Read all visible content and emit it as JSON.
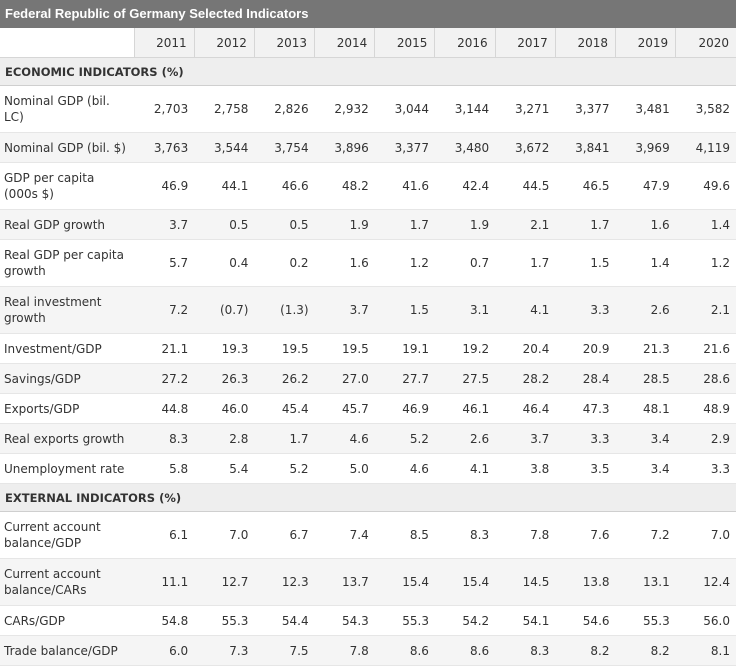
{
  "title": "Federal Republic of Germany Selected Indicators",
  "years": [
    "2011",
    "2012",
    "2013",
    "2014",
    "2015",
    "2016",
    "2017",
    "2018",
    "2019",
    "2020"
  ],
  "sections": [
    {
      "heading": "ECONOMIC INDICATORS (%)",
      "rows": [
        {
          "label": "Nominal GDP (bil. LC)",
          "values": [
            "2,703",
            "2,758",
            "2,826",
            "2,932",
            "3,044",
            "3,144",
            "3,271",
            "3,377",
            "3,481",
            "3,582"
          ]
        },
        {
          "label": "Nominal GDP (bil. $)",
          "values": [
            "3,763",
            "3,544",
            "3,754",
            "3,896",
            "3,377",
            "3,480",
            "3,672",
            "3,841",
            "3,969",
            "4,119"
          ]
        },
        {
          "label": "GDP per capita (000s $)",
          "values": [
            "46.9",
            "44.1",
            "46.6",
            "48.2",
            "41.6",
            "42.4",
            "44.5",
            "46.5",
            "47.9",
            "49.6"
          ]
        },
        {
          "label": "Real GDP growth",
          "values": [
            "3.7",
            "0.5",
            "0.5",
            "1.9",
            "1.7",
            "1.9",
            "2.1",
            "1.7",
            "1.6",
            "1.4"
          ]
        },
        {
          "label": "Real GDP per capita growth",
          "values": [
            "5.7",
            "0.4",
            "0.2",
            "1.6",
            "1.2",
            "0.7",
            "1.7",
            "1.5",
            "1.4",
            "1.2"
          ]
        },
        {
          "label": "Real investment growth",
          "values": [
            "7.2",
            "(0.7)",
            "(1.3)",
            "3.7",
            "1.5",
            "3.1",
            "4.1",
            "3.3",
            "2.6",
            "2.1"
          ]
        },
        {
          "label": "Investment/GDP",
          "values": [
            "21.1",
            "19.3",
            "19.5",
            "19.5",
            "19.1",
            "19.2",
            "20.4",
            "20.9",
            "21.3",
            "21.6"
          ]
        },
        {
          "label": "Savings/GDP",
          "values": [
            "27.2",
            "26.3",
            "26.2",
            "27.0",
            "27.7",
            "27.5",
            "28.2",
            "28.4",
            "28.5",
            "28.6"
          ]
        },
        {
          "label": "Exports/GDP",
          "values": [
            "44.8",
            "46.0",
            "45.4",
            "45.7",
            "46.9",
            "46.1",
            "46.4",
            "47.3",
            "48.1",
            "48.9"
          ]
        },
        {
          "label": "Real exports growth",
          "values": [
            "8.3",
            "2.8",
            "1.7",
            "4.6",
            "5.2",
            "2.6",
            "3.7",
            "3.3",
            "3.4",
            "2.9"
          ]
        },
        {
          "label": "Unemployment rate",
          "values": [
            "5.8",
            "5.4",
            "5.2",
            "5.0",
            "4.6",
            "4.1",
            "3.8",
            "3.5",
            "3.4",
            "3.3"
          ]
        }
      ]
    },
    {
      "heading": "EXTERNAL INDICATORS (%)",
      "rows": [
        {
          "label": "Current account balance/GDP",
          "values": [
            "6.1",
            "7.0",
            "6.7",
            "7.4",
            "8.5",
            "8.3",
            "7.8",
            "7.6",
            "7.2",
            "7.0"
          ]
        },
        {
          "label": "Current account balance/CARs",
          "values": [
            "11.1",
            "12.7",
            "12.3",
            "13.7",
            "15.4",
            "15.4",
            "14.5",
            "13.8",
            "13.1",
            "12.4"
          ]
        },
        {
          "label": "CARs/GDP",
          "values": [
            "54.8",
            "55.3",
            "54.4",
            "54.3",
            "55.3",
            "54.2",
            "54.1",
            "54.6",
            "55.3",
            "56.0"
          ]
        },
        {
          "label": "Trade balance/GDP",
          "values": [
            "6.0",
            "7.3",
            "7.5",
            "7.8",
            "8.6",
            "8.6",
            "8.3",
            "8.2",
            "8.2",
            "8.1"
          ]
        }
      ]
    }
  ]
}
